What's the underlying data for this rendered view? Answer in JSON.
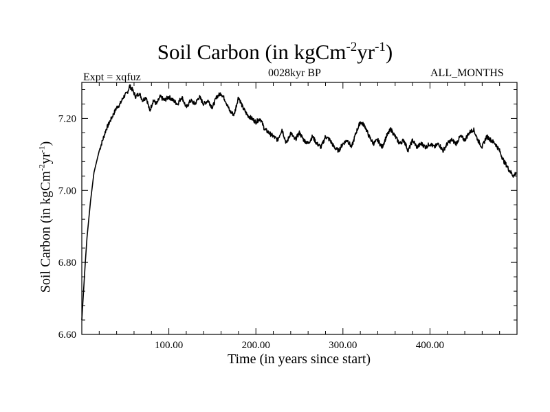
{
  "chart_data": {
    "type": "line",
    "title": {
      "prefix": "Soil Carbon (in kgCm",
      "sup1": "-2",
      "mid": "yr",
      "sup2": "-1",
      "suffix": ")"
    },
    "subtitle_left": "Expt = xqfuz",
    "subtitle_center": "0028kyr BP",
    "subtitle_right": "ALL_MONTHS",
    "xlabel": "Time (in years since start)",
    "ylabel": {
      "prefix": "Soil Carbon (in kgCm",
      "sup1": "-2",
      "mid": "yr",
      "sup2": "-1",
      "suffix": ")"
    },
    "xlim": [
      0,
      500
    ],
    "ylim": [
      6.6,
      7.3
    ],
    "xticks": [
      100,
      200,
      300,
      400
    ],
    "xtick_labels": [
      "100.00",
      "200.00",
      "300.00",
      "400.00"
    ],
    "yticks": [
      6.6,
      6.8,
      7.0,
      7.2
    ],
    "ytick_labels": [
      "6.60",
      "6.80",
      "7.00",
      "7.20"
    ],
    "series": [
      {
        "name": "Soil Carbon",
        "color": "#000000",
        "x": [
          0,
          2,
          4,
          6,
          8,
          10,
          12,
          14,
          17,
          20,
          24,
          28,
          32,
          36,
          40,
          44,
          48,
          52,
          55,
          58,
          62,
          66,
          70,
          74,
          78,
          82,
          86,
          90,
          95,
          100,
          105,
          110,
          115,
          120,
          125,
          130,
          135,
          140,
          145,
          150,
          155,
          160,
          165,
          170,
          175,
          180,
          185,
          190,
          195,
          200,
          205,
          210,
          215,
          220,
          225,
          230,
          235,
          240,
          245,
          250,
          255,
          260,
          265,
          270,
          275,
          280,
          285,
          290,
          295,
          300,
          305,
          310,
          315,
          320,
          325,
          330,
          335,
          340,
          345,
          350,
          355,
          360,
          365,
          370,
          375,
          380,
          385,
          390,
          395,
          400,
          405,
          410,
          415,
          420,
          425,
          430,
          435,
          440,
          445,
          450,
          455,
          460,
          465,
          470,
          475,
          480,
          485,
          488,
          490,
          493,
          496,
          499
        ],
        "values": [
          6.64,
          6.72,
          6.8,
          6.87,
          6.92,
          6.97,
          7.01,
          7.05,
          7.08,
          7.11,
          7.14,
          7.17,
          7.19,
          7.21,
          7.23,
          7.24,
          7.26,
          7.27,
          7.29,
          7.28,
          7.26,
          7.27,
          7.25,
          7.26,
          7.22,
          7.25,
          7.24,
          7.26,
          7.25,
          7.26,
          7.25,
          7.24,
          7.26,
          7.23,
          7.25,
          7.24,
          7.26,
          7.24,
          7.25,
          7.23,
          7.26,
          7.27,
          7.25,
          7.22,
          7.21,
          7.26,
          7.23,
          7.21,
          7.2,
          7.19,
          7.2,
          7.17,
          7.16,
          7.15,
          7.14,
          7.17,
          7.13,
          7.16,
          7.14,
          7.16,
          7.14,
          7.13,
          7.15,
          7.13,
          7.12,
          7.15,
          7.14,
          7.12,
          7.11,
          7.13,
          7.14,
          7.12,
          7.16,
          7.19,
          7.18,
          7.15,
          7.13,
          7.14,
          7.12,
          7.15,
          7.17,
          7.15,
          7.13,
          7.14,
          7.11,
          7.14,
          7.12,
          7.13,
          7.12,
          7.13,
          7.12,
          7.13,
          7.11,
          7.13,
          7.14,
          7.13,
          7.15,
          7.14,
          7.16,
          7.17,
          7.14,
          7.12,
          7.15,
          7.14,
          7.13,
          7.11,
          7.08,
          7.07,
          7.06,
          7.05,
          7.04,
          7.05
        ]
      }
    ],
    "grid": false
  }
}
